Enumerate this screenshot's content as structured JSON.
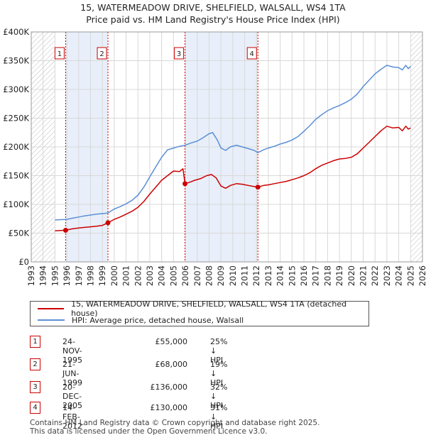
{
  "chart_data": {
    "type": "line",
    "title": "15, WATERMEADOW DRIVE, SHELFIELD, WALSALL, WS4 1TA",
    "subtitle": "Price paid vs. HM Land Registry's House Price Index (HPI)",
    "xlim": [
      1993,
      2026
    ],
    "ylim": [
      0,
      400000
    ],
    "x_ticks": [
      "1993",
      "1994",
      "1995",
      "1996",
      "1997",
      "1998",
      "1999",
      "2000",
      "2001",
      "2002",
      "2003",
      "2004",
      "2005",
      "2006",
      "2007",
      "2008",
      "2009",
      "2010",
      "2011",
      "2012",
      "2013",
      "2014",
      "2015",
      "2016",
      "2017",
      "2018",
      "2019",
      "2020",
      "2021",
      "2022",
      "2023",
      "2024",
      "2025",
      "2026"
    ],
    "y_ticks": [
      {
        "value": 0,
        "label": "£0"
      },
      {
        "value": 50000,
        "label": "£50K"
      },
      {
        "value": 100000,
        "label": "£100K"
      },
      {
        "value": 150000,
        "label": "£150K"
      },
      {
        "value": 200000,
        "label": "£200K"
      },
      {
        "value": 250000,
        "label": "£250K"
      },
      {
        "value": 300000,
        "label": "£300K"
      },
      {
        "value": 350000,
        "label": "£350K"
      },
      {
        "value": 400000,
        "label": "£400K"
      }
    ],
    "hatched_ranges": [
      [
        1993,
        1995.0
      ],
      [
        2025.0,
        2026
      ]
    ],
    "shaded_ranges": [
      [
        1995.9,
        1999.47
      ],
      [
        2005.97,
        2012.12
      ]
    ],
    "series": [
      {
        "name": "15, WATERMEADOW DRIVE, SHELFIELD, WALSALL, WS4 1TA (detached house)",
        "color": "#cc0000",
        "points": [
          [
            1995.0,
            54000
          ],
          [
            1995.9,
            55000
          ],
          [
            1996.5,
            57500
          ],
          [
            1997.0,
            59000
          ],
          [
            1997.5,
            60000
          ],
          [
            1998.0,
            61000
          ],
          [
            1998.5,
            62000
          ],
          [
            1999.0,
            63500
          ],
          [
            1999.47,
            68000
          ],
          [
            2000.0,
            74000
          ],
          [
            2000.5,
            78000
          ],
          [
            2001.0,
            83000
          ],
          [
            2001.5,
            88000
          ],
          [
            2002.0,
            95000
          ],
          [
            2002.5,
            105000
          ],
          [
            2003.0,
            118000
          ],
          [
            2003.5,
            130000
          ],
          [
            2004.0,
            142000
          ],
          [
            2004.5,
            150000
          ],
          [
            2005.0,
            158000
          ],
          [
            2005.5,
            157000
          ],
          [
            2005.8,
            162000
          ],
          [
            2005.97,
            136000
          ],
          [
            2006.3,
            138000
          ],
          [
            2006.8,
            142000
          ],
          [
            2007.3,
            145000
          ],
          [
            2007.8,
            150000
          ],
          [
            2008.2,
            152000
          ],
          [
            2008.6,
            146000
          ],
          [
            2009.0,
            132000
          ],
          [
            2009.4,
            128000
          ],
          [
            2009.8,
            133000
          ],
          [
            2010.3,
            136000
          ],
          [
            2010.8,
            135000
          ],
          [
            2011.3,
            133000
          ],
          [
            2011.8,
            131000
          ],
          [
            2012.12,
            130000
          ],
          [
            2012.6,
            133000
          ],
          [
            2013.0,
            134000
          ],
          [
            2013.5,
            136000
          ],
          [
            2014.0,
            138000
          ],
          [
            2014.5,
            140000
          ],
          [
            2015.0,
            143000
          ],
          [
            2015.5,
            146000
          ],
          [
            2016.0,
            150000
          ],
          [
            2016.5,
            155000
          ],
          [
            2017.0,
            162000
          ],
          [
            2017.5,
            168000
          ],
          [
            2018.0,
            172000
          ],
          [
            2018.5,
            176000
          ],
          [
            2019.0,
            179000
          ],
          [
            2019.5,
            180000
          ],
          [
            2020.0,
            182000
          ],
          [
            2020.5,
            188000
          ],
          [
            2021.0,
            198000
          ],
          [
            2021.5,
            208000
          ],
          [
            2022.0,
            218000
          ],
          [
            2022.5,
            228000
          ],
          [
            2023.0,
            236000
          ],
          [
            2023.5,
            233000
          ],
          [
            2024.0,
            234000
          ],
          [
            2024.3,
            228000
          ],
          [
            2024.6,
            236000
          ],
          [
            2024.8,
            231000
          ],
          [
            2025.0,
            233000
          ]
        ]
      },
      {
        "name": "HPI: Average price, detached house, Walsall",
        "color": "#5b8fd6",
        "points": [
          [
            1995.0,
            73000
          ],
          [
            1995.5,
            73500
          ],
          [
            1996.0,
            74000
          ],
          [
            1996.5,
            76000
          ],
          [
            1997.0,
            78000
          ],
          [
            1997.5,
            80000
          ],
          [
            1998.0,
            81500
          ],
          [
            1998.5,
            83000
          ],
          [
            1999.0,
            84000
          ],
          [
            1999.47,
            85000
          ],
          [
            2000.0,
            92000
          ],
          [
            2000.5,
            96000
          ],
          [
            2001.0,
            101000
          ],
          [
            2001.5,
            107000
          ],
          [
            2002.0,
            116000
          ],
          [
            2002.5,
            130000
          ],
          [
            2003.0,
            148000
          ],
          [
            2003.5,
            165000
          ],
          [
            2004.0,
            182000
          ],
          [
            2004.5,
            195000
          ],
          [
            2005.0,
            198000
          ],
          [
            2005.5,
            201000
          ],
          [
            2006.0,
            203000
          ],
          [
            2006.5,
            207000
          ],
          [
            2007.0,
            210000
          ],
          [
            2007.5,
            216000
          ],
          [
            2008.0,
            223000
          ],
          [
            2008.3,
            225000
          ],
          [
            2008.7,
            212000
          ],
          [
            2009.0,
            198000
          ],
          [
            2009.4,
            194000
          ],
          [
            2009.8,
            200000
          ],
          [
            2010.3,
            203000
          ],
          [
            2010.8,
            200000
          ],
          [
            2011.3,
            197000
          ],
          [
            2011.8,
            194000
          ],
          [
            2012.12,
            190000
          ],
          [
            2012.6,
            195000
          ],
          [
            2013.0,
            198000
          ],
          [
            2013.5,
            201000
          ],
          [
            2014.0,
            205000
          ],
          [
            2014.5,
            208000
          ],
          [
            2015.0,
            212000
          ],
          [
            2015.5,
            218000
          ],
          [
            2016.0,
            227000
          ],
          [
            2016.5,
            237000
          ],
          [
            2017.0,
            248000
          ],
          [
            2017.5,
            256000
          ],
          [
            2018.0,
            263000
          ],
          [
            2018.5,
            268000
          ],
          [
            2019.0,
            272000
          ],
          [
            2019.5,
            277000
          ],
          [
            2020.0,
            283000
          ],
          [
            2020.5,
            292000
          ],
          [
            2021.0,
            305000
          ],
          [
            2021.5,
            316000
          ],
          [
            2022.0,
            327000
          ],
          [
            2022.5,
            335000
          ],
          [
            2023.0,
            342000
          ],
          [
            2023.5,
            339000
          ],
          [
            2024.0,
            338000
          ],
          [
            2024.3,
            334000
          ],
          [
            2024.6,
            342000
          ],
          [
            2024.8,
            336000
          ],
          [
            2025.0,
            340000
          ]
        ]
      }
    ],
    "sales": [
      {
        "num": "1",
        "x": 1995.9,
        "price": 55000,
        "date": "24-NOV-1995",
        "price_label": "£55,000",
        "hpi": "25% ↓ HPI"
      },
      {
        "num": "2",
        "x": 1999.47,
        "price": 68000,
        "date": "21-JUN-1999",
        "price_label": "£68,000",
        "hpi": "19% ↓ HPI"
      },
      {
        "num": "3",
        "x": 2005.97,
        "price": 136000,
        "date": "20-DEC-2005",
        "price_label": "£136,000",
        "hpi": "32% ↓ HPI"
      },
      {
        "num": "4",
        "x": 2012.12,
        "price": 130000,
        "date": "14-FEB-2012",
        "price_label": "£130,000",
        "hpi": "31% ↓ HPI"
      }
    ]
  },
  "legend": {
    "price_label": "15, WATERMEADOW DRIVE, SHELFIELD, WALSALL, WS4 1TA (detached house)",
    "hpi_label": "HPI: Average price, detached house, Walsall",
    "price_color": "#cc0000",
    "hpi_color": "#5b8fd6"
  },
  "footer": {
    "line1": "Contains HM Land Registry data © Crown copyright and database right 2025.",
    "line2": "This data is licensed under the Open Government Licence v3.0."
  }
}
